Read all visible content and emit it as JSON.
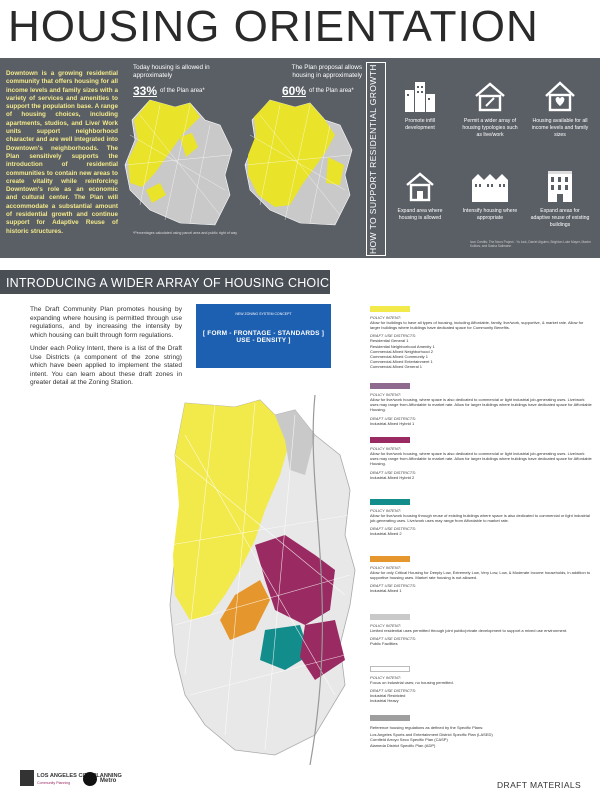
{
  "header": {
    "title": "HOUSING ORIENTATION"
  },
  "intro": {
    "text": "Downtown is a growing residential community that offers housing for all income levels and family sizes with a variety of services and amenities to support the population base. A range of housing choices, including apartments, studios, and Live/ Work units support neighborhood character and are well integrated into Downtown's neighborhoods. The Plan sensitively supports the introduction of residential communities to contain new areas to create vitality while reinforcing Downtown's role as an economic and cultural center. The Plan will accommodate a substantial amount of residential growth and continue support for Adaptive Reuse of historic structures."
  },
  "maps": {
    "today_caption": "Today housing is allowed in approximately",
    "today_pct": "33%",
    "today_tail": "of the Plan area*",
    "plan_caption": "The Plan proposal allows housing in approximately",
    "plan_pct": "60%",
    "plan_tail": "of the Plan area*",
    "footnote": "*Percentages calculated using parcel area and public right of way",
    "fill_color": "#e9e32a"
  },
  "vertical_title": "HOW TO SUPPORT RESIDENTIAL GROWTH",
  "features": [
    {
      "icon": "buildings-icon",
      "label": "Promote infill development"
    },
    {
      "icon": "house-pencil-icon",
      "label": "Permit a wider array of housing typologies such as live/work"
    },
    {
      "icon": "house-heart-icon",
      "label": "Housing available for all income levels and family sizes"
    },
    {
      "icon": "house-outline-icon",
      "label": "Expand area where housing is allowed"
    },
    {
      "icon": "townhouses-icon",
      "label": "Intensify housing where appropriate"
    },
    {
      "icon": "historic-building-icon",
      "label": "Expand areas for adaptive reuse of existing buildings"
    }
  ],
  "credits": "Icon Credits: The Noun Project - Yu luck, Daniel Alguien, Brighton Luke Mayer, Maxim Kulikov, and Sasha Sallmann",
  "section": {
    "banner": "INTRODUCING A WIDER ARRAY OF HOUSING CHOICES",
    "para1": "The Draft Community Plan promotes housing by expanding where housing is permitted through use regulations, and by increasing the intensity by which housing can built through form regulations.",
    "para2": "Under each Policy Intent, there is a list of the Draft Use Districts (a component of the zone string) which have been applied to implement the stated intent. You can learn about these draft zones in greater detail at the Zoning Station.",
    "zone_card_title": "NEW ZONING SYSTEM CONCEPT",
    "zone_card_formula": "[ FORM - FRONTAGE - STANDARDS ] USE - DENSITY ]"
  },
  "legend": [
    {
      "color": "#f2e94a",
      "policy_label": "POLICY INTENT:",
      "policy": "Allow for buildings to have all types of housing, including Affordable, family, live/work, supportive, & market rate. Allow for larger buildings where buildings have dedicated space for Community Benefits.",
      "districts_label": "DRAFT USE DISTRICTS:",
      "districts": [
        "Residential General 1",
        "Residential Neighborhood Amenity 1",
        "Commercial-Mixed Neighborhood 2",
        "Commercial-Mixed Community 1",
        "Commercial-Mixed Entertainment 1",
        "Commercial-Mixed General 1"
      ]
    },
    {
      "color": "#8e6a8e",
      "policy_label": "POLICY INTENT:",
      "policy": "Allow for live/work housing, where space is also dedicated to commercial or light industrial job-generating uses. Live/work uses may range from Affordable to market rate. Allow for larger buildings where buildings have dedicated space for Affordable Housing.",
      "districts_label": "DRAFT USE DISTRICTS:",
      "districts": [
        "Industrial-Mixed Hybrid 1"
      ]
    },
    {
      "color": "#9a2a62",
      "policy_label": "POLICY INTENT:",
      "policy": "Allow for live/work housing, where space is also dedicated to commercial or light industrial job-generating uses. Live/work uses may range from Affordable to market rate. Allow for larger buildings where buildings have dedicated space for Affordable Housing.",
      "districts_label": "DRAFT USE DISTRICTS:",
      "districts": [
        "Industrial-Mixed Hybrid 2"
      ]
    },
    {
      "color": "#138c8c",
      "policy_label": "POLICY INTENT:",
      "policy": "Allow for live/work housing through reuse of existing buildings where space is also dedicated to commercial or light industrial job-generating uses. Live/work uses may range from Affordable to market rate.",
      "districts_label": "DRAFT USE DISTRICTS:",
      "districts": [
        "Industrial-Mixed 2"
      ]
    },
    {
      "color": "#e5962c",
      "policy_label": "POLICY INTENT:",
      "policy": "Allow for only Critical Housing for Deeply Low, Extremely Low, Very Low, Low, & Moderate Income households, in addition to supportive housing uses. Market rate housing is not allowed.",
      "districts_label": "DRAFT USE DISTRICTS:",
      "districts": [
        "Industrial-Mixed 1"
      ]
    },
    {
      "color": "#c9c9c9",
      "policy_label": "POLICY INTENT:",
      "policy": "Limited residential uses permitted through joint public/private development to support a mixed use environment.",
      "districts_label": "DRAFT USE DISTRICTS:",
      "districts": [
        "Public Facilities"
      ]
    },
    {
      "color": "#ffffff",
      "policy_label": "POLICY INTENT:",
      "policy": "Focus on industrial uses; no housing permitted.",
      "districts_label": "DRAFT USE DISTRICTS:",
      "districts": [
        "Industrial Restricted",
        "Industrial Heavy"
      ]
    },
    {
      "color": "#9e9e9e",
      "policy_label": "",
      "policy": "Reference housing regulations as defined by the Specific Plans:",
      "districts_label": "",
      "districts": [
        "Los Angeles Sports and Entertainment District Specific Plan (LASED)",
        "Cornfield Arroyo Seco Specific Plan (CASP)",
        "Alameda District Specific Plan (ADP)"
      ]
    }
  ],
  "footer": {
    "draft": "DRAFT MATERIALS",
    "logo1": "LOS ANGELES CITY PLANNING",
    "logo1_sub": "Community Planning",
    "logo2": "Metro"
  }
}
